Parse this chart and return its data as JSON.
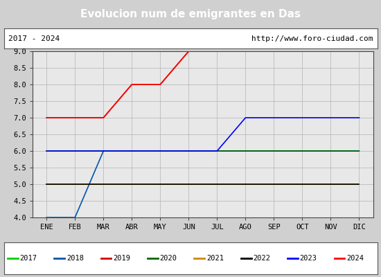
{
  "title": "Evolucion num de emigrantes en Das",
  "title_bg": "#4f86c6",
  "title_color": "white",
  "subtitle_left": "2017 - 2024",
  "subtitle_right": "http://www.foro-ciudad.com",
  "ylim": [
    4.0,
    9.0
  ],
  "yticks": [
    4.0,
    4.5,
    5.0,
    5.5,
    6.0,
    6.5,
    7.0,
    7.5,
    8.0,
    8.5,
    9.0
  ],
  "months": [
    "ENE",
    "FEB",
    "MAR",
    "ABR",
    "MAY",
    "JUN",
    "JUL",
    "AGO",
    "SEP",
    "OCT",
    "NOV",
    "DIC"
  ],
  "month_indices": [
    1,
    2,
    3,
    4,
    5,
    6,
    7,
    8,
    9,
    10,
    11,
    12
  ],
  "series": {
    "2017": {
      "color": "#00cc00",
      "x": [],
      "y": []
    },
    "2018": {
      "color": "#0055aa",
      "x": [
        1,
        2,
        3,
        4,
        5,
        6,
        7,
        8,
        9,
        10,
        11,
        12
      ],
      "y": [
        4.0,
        4.0,
        6.0,
        6.0,
        6.0,
        6.0,
        6.0,
        6.0,
        6.0,
        6.0,
        6.0,
        6.0
      ]
    },
    "2019": {
      "color": "#cc0000",
      "x": [
        1,
        2,
        3,
        4,
        5,
        6,
        7,
        8,
        9,
        10,
        11,
        12
      ],
      "y": [
        7.0,
        7.0,
        7.0,
        8.0,
        8.0,
        9.0,
        9.0,
        9.0,
        9.0,
        9.0,
        9.0,
        9.0
      ]
    },
    "2020": {
      "color": "#006600",
      "x": [
        1,
        2,
        3,
        4,
        5,
        6,
        7,
        8,
        9,
        10,
        11,
        12
      ],
      "y": [
        6.0,
        6.0,
        6.0,
        6.0,
        6.0,
        6.0,
        6.0,
        6.0,
        6.0,
        6.0,
        6.0,
        6.0
      ]
    },
    "2021": {
      "color": "#cc8800",
      "x": [
        1,
        2,
        3,
        4,
        5,
        6,
        7,
        8,
        9,
        10,
        11,
        12
      ],
      "y": [
        5.0,
        5.0,
        5.0,
        5.0,
        5.0,
        5.0,
        5.0,
        5.0,
        5.0,
        5.0,
        5.0,
        5.0
      ]
    },
    "2022": {
      "color": "#000000",
      "x": [
        1,
        2,
        3,
        4,
        5,
        6,
        7,
        8,
        9,
        10,
        11,
        12
      ],
      "y": [
        5.0,
        5.0,
        5.0,
        5.0,
        5.0,
        5.0,
        5.0,
        5.0,
        5.0,
        5.0,
        5.0,
        5.0
      ]
    },
    "2023": {
      "color": "#0000ff",
      "x": [
        1,
        2,
        3,
        4,
        5,
        6,
        7,
        8,
        9,
        10,
        11,
        12
      ],
      "y": [
        6.0,
        6.0,
        6.0,
        6.0,
        6.0,
        6.0,
        6.0,
        7.0,
        7.0,
        7.0,
        7.0,
        7.0
      ]
    },
    "2024": {
      "color": "#ff0000",
      "x": [
        1,
        2,
        3,
        4,
        5,
        6,
        7,
        8,
        9,
        10,
        11,
        12
      ],
      "y": [
        7.0,
        7.0,
        7.0,
        8.0,
        8.0,
        9.0,
        9.0,
        9.0,
        9.0,
        9.0,
        9.0,
        9.0
      ]
    }
  },
  "legend_order": [
    "2017",
    "2018",
    "2019",
    "2020",
    "2021",
    "2022",
    "2023",
    "2024"
  ],
  "fig_bg": "#d0d0d0",
  "plot_bg_color": "#e8e8e8",
  "grid_color": "#bbbbbb",
  "subtitle_box_color": "white",
  "subtitle_border": "#555555"
}
